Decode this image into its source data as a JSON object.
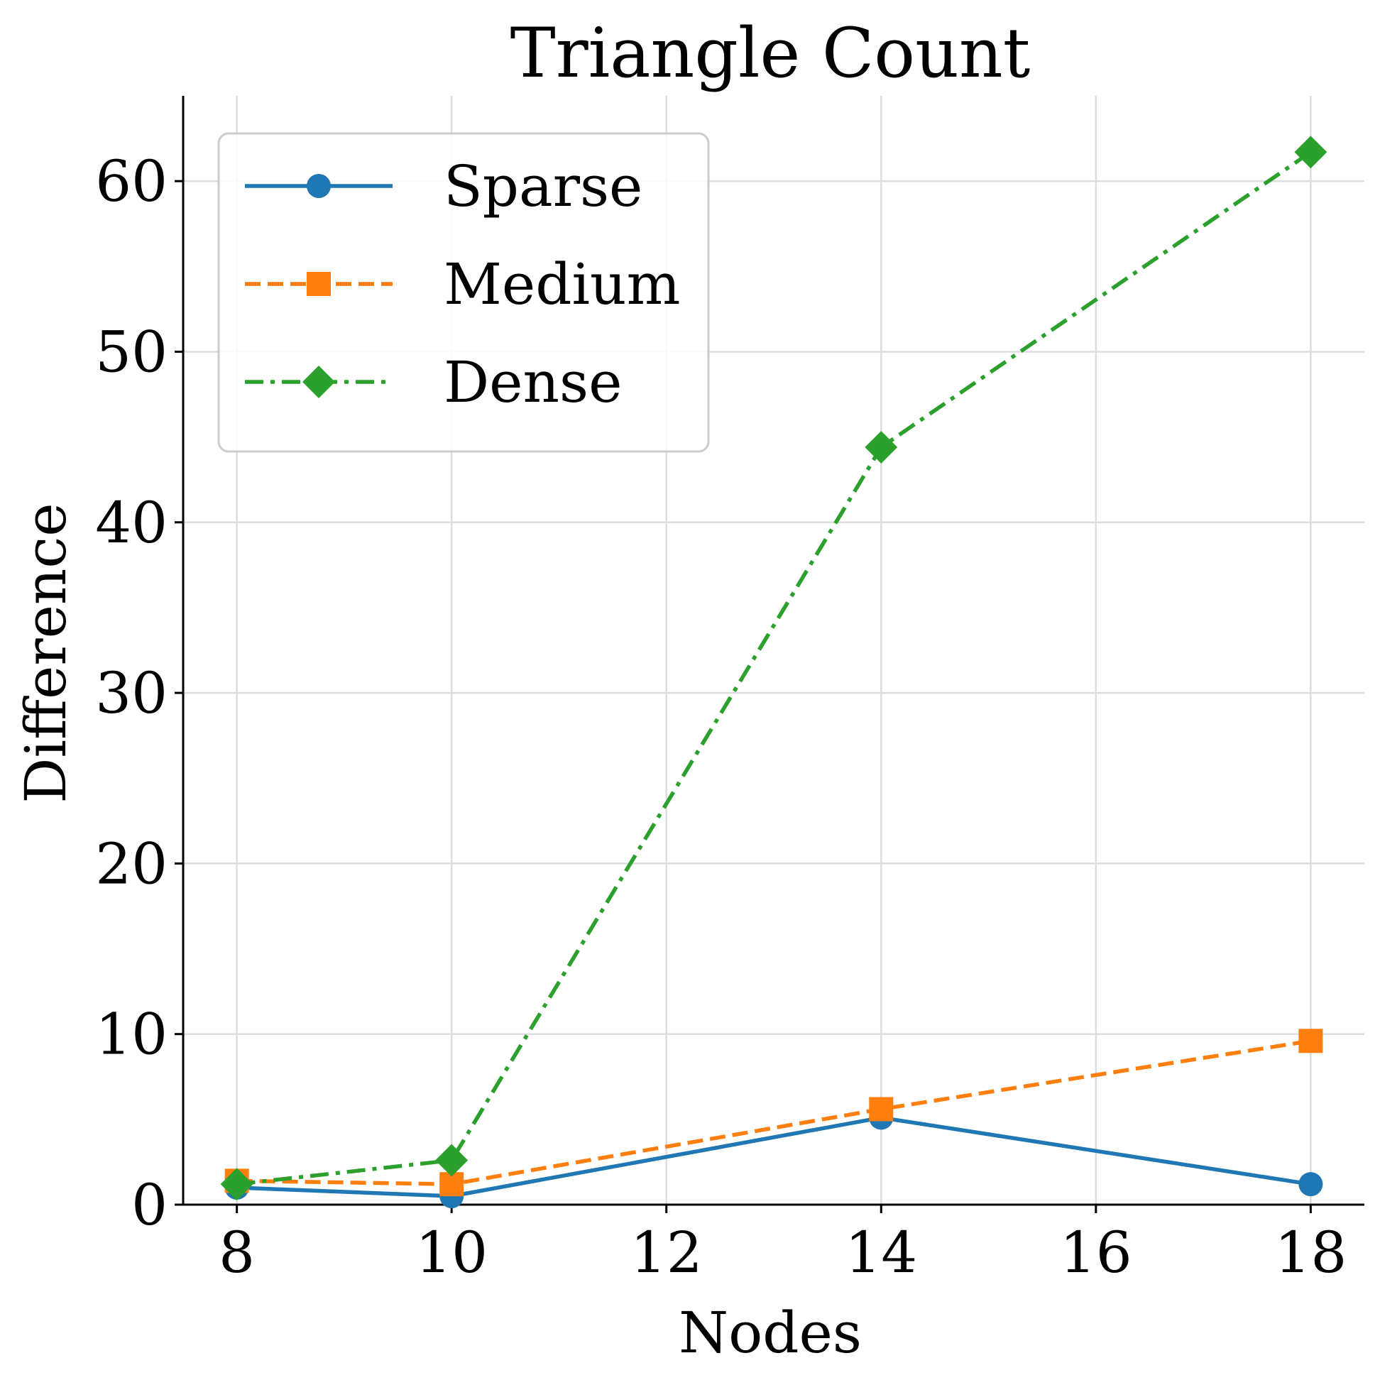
{
  "chart_data": {
    "type": "line",
    "title": "Triangle Count",
    "xlabel": "Nodes",
    "ylabel": "Difference",
    "x": [
      8,
      10,
      14,
      18
    ],
    "xlim": [
      7.5,
      18.5
    ],
    "ylim": [
      0,
      65
    ],
    "xticks": [
      8,
      10,
      12,
      14,
      16,
      18
    ],
    "yticks": [
      0,
      10,
      20,
      30,
      40,
      50,
      60
    ],
    "grid": true,
    "legend_position": "top-left",
    "series": [
      {
        "name": "Sparse",
        "values": [
          1.0,
          0.5,
          5.1,
          1.2
        ],
        "color": "#1f77b4",
        "marker": "circle",
        "line_style": "solid"
      },
      {
        "name": "Medium",
        "values": [
          1.4,
          1.2,
          5.6,
          9.6
        ],
        "color": "#ff7f0e",
        "marker": "square",
        "line_style": "dashed"
      },
      {
        "name": "Dense",
        "values": [
          1.2,
          2.6,
          44.4,
          61.7
        ],
        "color": "#2ca02c",
        "marker": "diamond",
        "line_style": "dashdot"
      }
    ]
  }
}
